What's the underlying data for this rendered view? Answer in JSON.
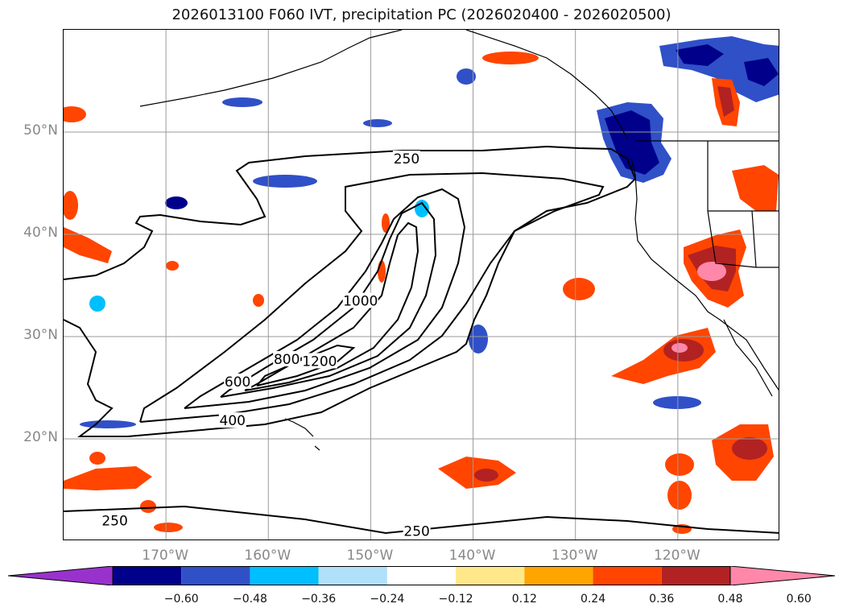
{
  "title": "2026013100 F060 IVT, precipitation PC (2026020400 - 2026020500)",
  "map": {
    "lon_range": [
      -180,
      -110
    ],
    "lat_range": [
      10,
      60
    ],
    "lat_ticks": [
      {
        "value": 50,
        "label": "50°N"
      },
      {
        "value": 40,
        "label": "40°N"
      },
      {
        "value": 30,
        "label": "30°N"
      },
      {
        "value": 20,
        "label": "20°N"
      }
    ],
    "lon_ticks": [
      {
        "value": -170,
        "label": "170°W"
      },
      {
        "value": -160,
        "label": "160°W"
      },
      {
        "value": -150,
        "label": "150°W"
      },
      {
        "value": -140,
        "label": "140°W"
      },
      {
        "value": -130,
        "label": "130°W"
      },
      {
        "value": -120,
        "label": "120°W"
      }
    ],
    "grid": true
  },
  "ivt_contours": {
    "levels": [
      250,
      400,
      600,
      800,
      1000,
      1200
    ],
    "labels": [
      {
        "text": "250",
        "lon": -146.5,
        "lat": 47.4
      },
      {
        "text": "250",
        "lon": -145.5,
        "lat": 11.0
      },
      {
        "text": "250",
        "lon": -175.0,
        "lat": 12.0
      },
      {
        "text": "400",
        "lon": -163.5,
        "lat": 21.8
      },
      {
        "text": "600",
        "lon": -163.0,
        "lat": 25.6
      },
      {
        "text": "800",
        "lon": -158.2,
        "lat": 27.8
      },
      {
        "text": "1200",
        "lon": -155.0,
        "lat": 27.6
      },
      {
        "text": "1000",
        "lon": -151.0,
        "lat": 33.5
      }
    ]
  },
  "colorbar": {
    "colors": [
      "#9932cc",
      "#00008b",
      "#3050c8",
      "#00bfff",
      "#b0e0fa",
      "#ffffff",
      "#ffe88a",
      "#ffa500",
      "#ff4500",
      "#b22222",
      "#ff88aa"
    ],
    "ticks": [
      "−0.60",
      "−0.48",
      "−0.36",
      "−0.24",
      "−0.12",
      "0.12",
      "0.24",
      "0.36",
      "0.48",
      "0.60"
    ],
    "extend": "both"
  }
}
